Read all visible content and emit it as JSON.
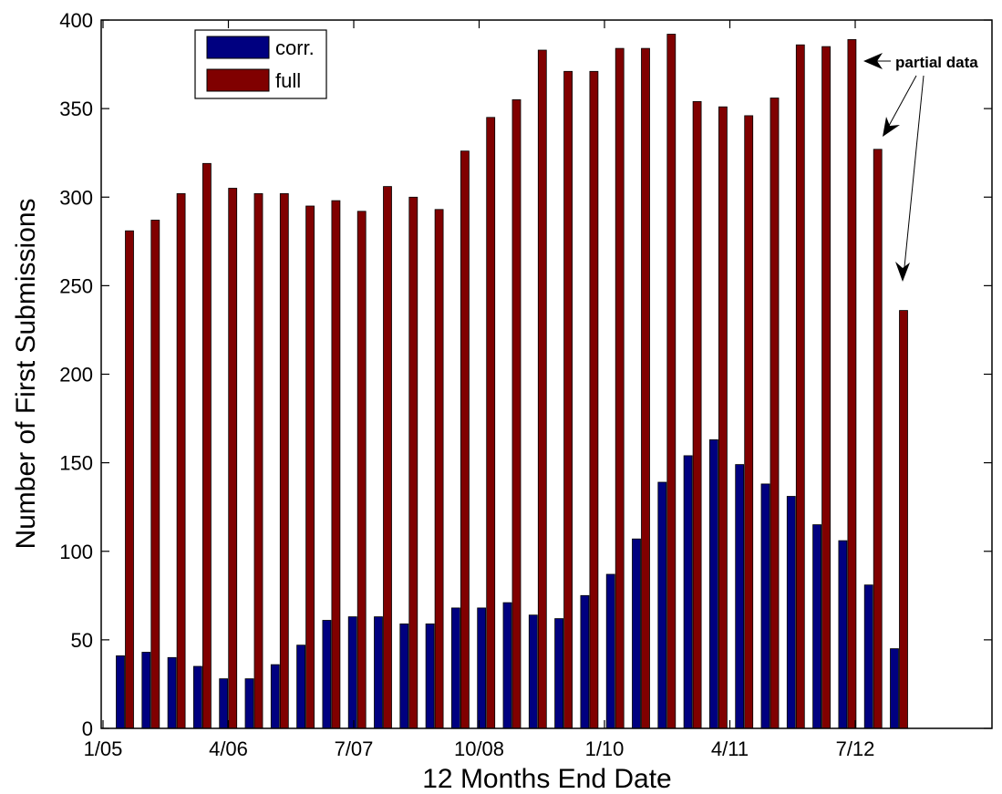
{
  "chart_data": {
    "type": "bar",
    "xlabel": "12 Months End Date",
    "ylabel": "Number of First Submissions",
    "ylim": [
      0,
      400
    ],
    "yticks": [
      0,
      50,
      100,
      150,
      200,
      250,
      300,
      350,
      400
    ],
    "xtick_labels": [
      "1/05",
      "4/06",
      "7/07",
      "10/08",
      "1/10",
      "4/11",
      "7/12"
    ],
    "grid": false,
    "legend_position": "top-left",
    "series": [
      {
        "name": "corr.",
        "color": "#000080",
        "values": [
          41,
          43,
          40,
          35,
          28,
          28,
          36,
          47,
          61,
          63,
          63,
          59,
          59,
          68,
          68,
          71,
          64,
          62,
          75,
          87,
          107,
          139,
          154,
          163,
          149,
          138,
          131,
          115,
          106,
          81,
          45
        ]
      },
      {
        "name": "full",
        "color": "#800000",
        "values": [
          281,
          287,
          302,
          319,
          305,
          302,
          302,
          295,
          298,
          292,
          306,
          300,
          293,
          326,
          345,
          355,
          383,
          371,
          371,
          384,
          384,
          392,
          354,
          351,
          346,
          356,
          386,
          385,
          389,
          327,
          236
        ]
      }
    ],
    "annotation": "partial data"
  }
}
